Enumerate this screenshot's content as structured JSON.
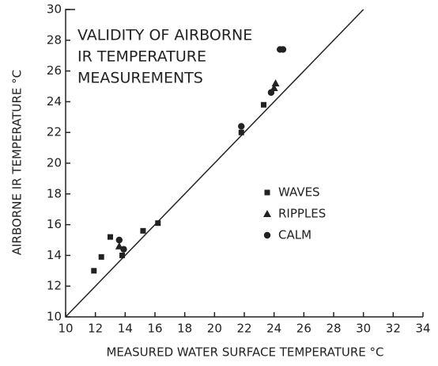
{
  "chart_data": {
    "type": "scatter",
    "title_lines": [
      "VALIDITY OF AIRBORNE",
      "IR TEMPERATURE",
      "MEASUREMENTS"
    ],
    "xlabel": "MEASURED WATER SURFACE  TEMPERATURE °C",
    "ylabel": "AIRBORNE  IR  TEMPERATURE °C",
    "xlim": [
      10,
      34
    ],
    "xticks": [
      10,
      12,
      14,
      16,
      18,
      20,
      22,
      24,
      26,
      28,
      30,
      32,
      34
    ],
    "ylim": [
      10,
      30
    ],
    "yticks": [
      10,
      12,
      14,
      16,
      18,
      20,
      22,
      24,
      26,
      28,
      30
    ],
    "series": [
      {
        "name": "WAVES",
        "marker": "square",
        "color": "#222",
        "x": [
          11.9,
          12.4,
          13.0,
          13.8,
          15.2,
          16.2,
          21.8,
          23.3
        ],
        "y": [
          13.0,
          13.9,
          15.2,
          14.0,
          15.6,
          16.1,
          22.0,
          23.8
        ]
      },
      {
        "name": "RIPPLES",
        "marker": "triangle",
        "color": "#222",
        "x": [
          13.6,
          24.1,
          24.0
        ],
        "y": [
          14.6,
          25.2,
          24.9
        ]
      },
      {
        "name": "CALM",
        "marker": "circle",
        "color": "#222",
        "x": [
          13.6,
          13.9,
          21.8,
          23.8,
          24.4,
          24.6
        ],
        "y": [
          15.0,
          14.4,
          22.4,
          24.6,
          27.4,
          27.4
        ]
      }
    ]
  }
}
